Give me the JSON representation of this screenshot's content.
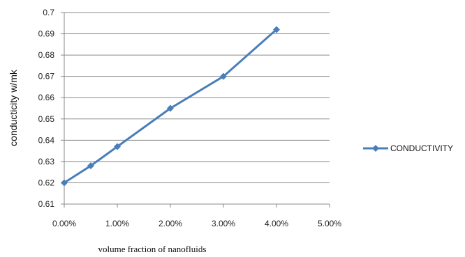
{
  "chart_data": {
    "type": "line",
    "title": "",
    "xlabel": "volume fraction of nanofluids",
    "ylabel": "conducticity w/mk",
    "x_tick_labels": [
      "0.00%",
      "1.00%",
      "2.00%",
      "3.00%",
      "4.00%",
      "5.00%"
    ],
    "y_tick_labels": [
      "0.61",
      "0.62",
      "0.63",
      "0.64",
      "0.65",
      "0.66",
      "0.67",
      "0.68",
      "0.69",
      "0.7"
    ],
    "xlim": [
      0,
      5
    ],
    "ylim": [
      0.61,
      0.7
    ],
    "grid": "horizontal",
    "legend_position": "right",
    "series": [
      {
        "name": "CONDUCTIVITY",
        "color": "#4a7ebb",
        "marker": "diamond",
        "x": [
          0,
          0.5,
          1,
          2,
          3,
          4
        ],
        "y": [
          0.62,
          0.628,
          0.637,
          0.655,
          0.67,
          0.692
        ]
      }
    ]
  }
}
